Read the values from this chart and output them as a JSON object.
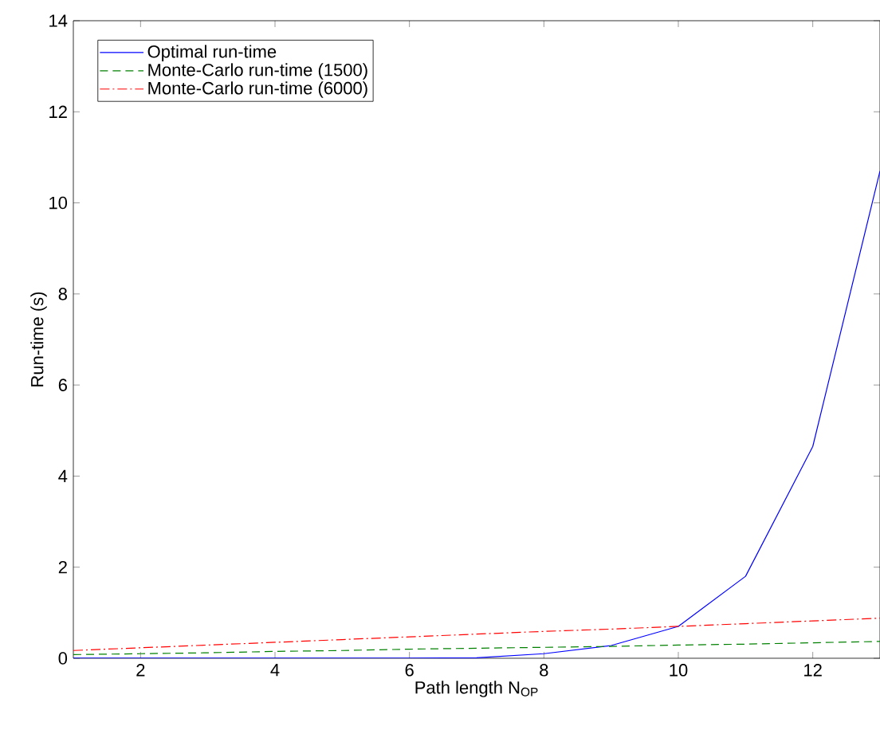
{
  "chart_data": {
    "type": "line",
    "xlabel": "Path length N$_{OP}$",
    "ylabel": "Run-time (s)",
    "x": [
      1,
      2,
      3,
      4,
      5,
      6,
      7,
      8,
      9,
      10,
      11,
      12,
      13
    ],
    "series": [
      {
        "name": "Optimal run-time",
        "color": "#0000ff",
        "line_style": "solid",
        "values": [
          0,
          0,
          0,
          0,
          0,
          0,
          0.01,
          0.1,
          0.28,
          0.7,
          1.8,
          4.65,
          10.7
        ]
      },
      {
        "name": "Monte-Carlo run-time (1500)",
        "color": "#008000",
        "line_style": "dashed",
        "values": [
          0.08,
          0.1,
          0.12,
          0.15,
          0.17,
          0.2,
          0.22,
          0.24,
          0.26,
          0.29,
          0.31,
          0.34,
          0.37
        ]
      },
      {
        "name": "Monte-Carlo run-time (6000)",
        "color": "#ff0000",
        "line_style": "dashdot",
        "values": [
          0.17,
          0.23,
          0.29,
          0.35,
          0.41,
          0.47,
          0.53,
          0.59,
          0.64,
          0.7,
          0.76,
          0.82,
          0.88
        ]
      }
    ],
    "xlim": [
      1,
      13
    ],
    "ylim": [
      0,
      14
    ],
    "xticks": [
      2,
      4,
      6,
      8,
      10,
      12
    ],
    "yticks": [
      0,
      2,
      4,
      6,
      8,
      10,
      12,
      14
    ],
    "grid": false,
    "legend": "top left",
    "marker": "none"
  }
}
